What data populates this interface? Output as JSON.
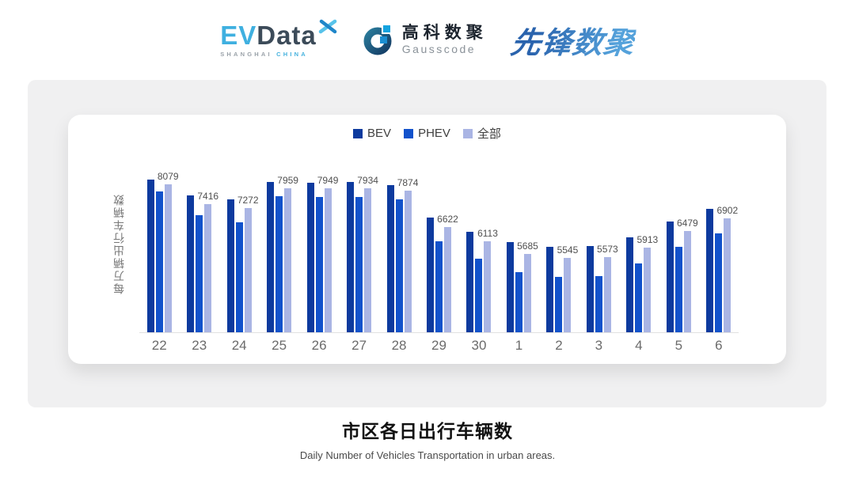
{
  "header": {
    "evdata": {
      "ev": "EV",
      "data": "Data",
      "shanghai": "SHANGHAI",
      "china": "CHINA"
    },
    "gausscode": {
      "cn": "高科数聚",
      "en": "Gausscode"
    },
    "pioneer": {
      "text": "先锋数聚"
    }
  },
  "chart_data": {
    "type": "bar",
    "title": "市区各日出行车辆数",
    "categories": [
      "22",
      "23",
      "24",
      "25",
      "26",
      "27",
      "28",
      "29",
      "30",
      "1",
      "2",
      "3",
      "4",
      "5",
      "6"
    ],
    "series": [
      {
        "name": "BEV",
        "key": "bev",
        "color": "#0d3a9e",
        "estimated": true,
        "values": [
          8240,
          7700,
          7580,
          8170,
          8140,
          8170,
          8060,
          6950,
          6450,
          6090,
          5930,
          5950,
          6250,
          6810,
          7240
        ]
      },
      {
        "name": "PHEV",
        "key": "phev",
        "color": "#1252cb",
        "estimated": true,
        "values": [
          7850,
          7010,
          6790,
          7670,
          7645,
          7645,
          7580,
          6130,
          5520,
          5075,
          4910,
          4940,
          5360,
          5930,
          6390
        ]
      },
      {
        "name": "全部",
        "key": "all",
        "color": "#aab5e4",
        "labels_visible": true,
        "values": [
          8079,
          7416,
          7272,
          7959,
          7949,
          7934,
          7874,
          6622,
          6113,
          5685,
          5545,
          5573,
          5913,
          6479,
          6902
        ]
      }
    ],
    "label_series": "全部",
    "xlabel": "",
    "ylabel": "每万辆出行车辆数",
    "ylim": [
      3000,
      9250
    ],
    "grid": false,
    "legend_position": "top"
  },
  "footer": {
    "title": "市区各日出行车辆数",
    "subtitle": "Daily Number of Vehicles Transportation in urban areas."
  }
}
